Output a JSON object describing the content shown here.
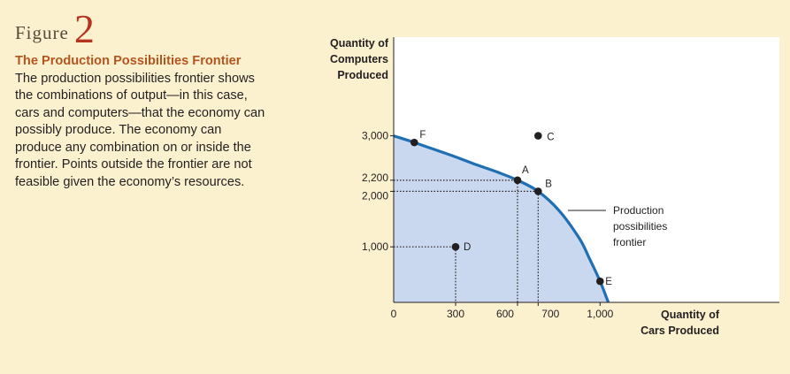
{
  "figure": {
    "word": "Figure",
    "number": "2"
  },
  "caption": {
    "title": "The Production Possibilities Frontier",
    "body": "The production possibilities frontier shows the combinations of output—in this case, cars and computers—that the economy can possibly produce. The economy can produce any combination on or inside the frontier. Points outside the frontier are not feasible given the economy’s resources."
  },
  "chart_data": {
    "type": "line",
    "ylabel": [
      "Quantity of",
      "Computers",
      "Produced"
    ],
    "xlabel": [
      "Quantity of",
      "Cars Produced"
    ],
    "xlim": [
      0,
      1000
    ],
    "ylim": [
      0,
      3000
    ],
    "x_ticks": [
      {
        "value": 0,
        "label": "0"
      },
      {
        "value": 300,
        "label": "300"
      },
      {
        "value": 600,
        "label": "600"
      },
      {
        "value": 700,
        "label": "700"
      },
      {
        "value": 1000,
        "label": "1,000"
      }
    ],
    "y_ticks": [
      {
        "value": 1000,
        "label": "1,000"
      },
      {
        "value": 2000,
        "label": "2,000"
      },
      {
        "value": 2200,
        "label": "2,200"
      },
      {
        "value": 3000,
        "label": "3,000"
      }
    ],
    "curve_label": [
      "Production",
      "possibilities",
      "frontier"
    ],
    "frontier": {
      "x": [
        0,
        100,
        200,
        300,
        400,
        500,
        600,
        700,
        800,
        900,
        950,
        1000,
        1040
      ],
      "y": [
        3000,
        2880,
        2750,
        2620,
        2480,
        2350,
        2200,
        2000,
        1660,
        1150,
        780,
        380,
        0
      ]
    },
    "points": [
      {
        "label": "F",
        "x": 100,
        "y": 2880
      },
      {
        "label": "C",
        "x": 700,
        "y": 3000
      },
      {
        "label": "A",
        "x": 600,
        "y": 2200
      },
      {
        "label": "B",
        "x": 700,
        "y": 2000
      },
      {
        "label": "D",
        "x": 300,
        "y": 1000
      },
      {
        "label": "E",
        "x": 1000,
        "y": 380
      }
    ],
    "guides": [
      {
        "x": 600,
        "y": 2200
      },
      {
        "x": 700,
        "y": 2000
      },
      {
        "x": 300,
        "y": 1000
      }
    ],
    "colors": {
      "frontier": "#1f6fb5",
      "fill": "#c9d8ee",
      "background": "#fbf1cf",
      "plot_bg": "#ffffff",
      "title": "#b4551f",
      "figure_number": "#b5331f"
    }
  }
}
